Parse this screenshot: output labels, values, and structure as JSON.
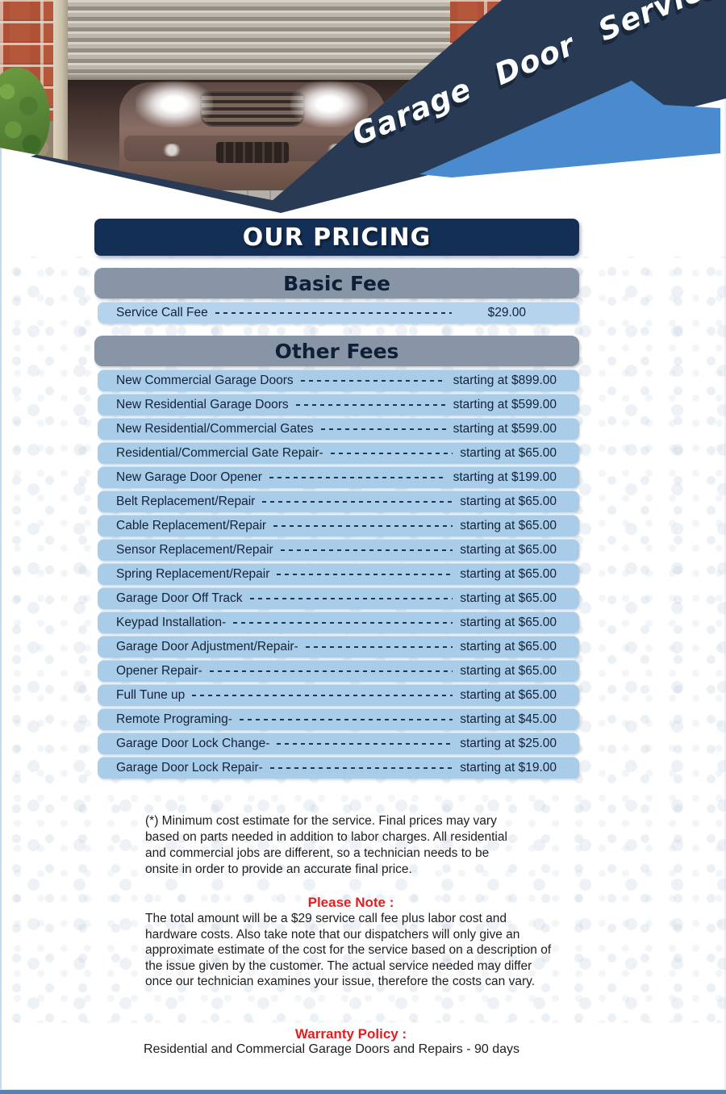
{
  "hero": {
    "banner_text": "Garage Door Service"
  },
  "pricing": {
    "title": "OUR PRICING"
  },
  "basic_fee": {
    "heading": "Basic Fee",
    "row": {
      "label": "Service Call Fee",
      "price": "$29.00"
    }
  },
  "other_fees": {
    "heading": "Other Fees",
    "rows": [
      {
        "label": "New Commercial Garage Doors",
        "price": "starting at $899.00"
      },
      {
        "label": "New Residential Garage Doors",
        "price": "starting at $599.00"
      },
      {
        "label": "New Residential/Commercial Gates",
        "price": "starting at $599.00"
      },
      {
        "label": "Residential/Commercial Gate Repair-",
        "price": "starting at $65.00"
      },
      {
        "label": "New Garage Door Opener",
        "price": "starting at $199.00"
      },
      {
        "label": "Belt Replacement/Repair",
        "price": "starting at $65.00"
      },
      {
        "label": "Cable Replacement/Repair",
        "price": "starting at $65.00"
      },
      {
        "label": "Sensor Replacement/Repair",
        "price": "starting at $65.00"
      },
      {
        "label": "Spring Replacement/Repair",
        "price": "starting at $65.00"
      },
      {
        "label": "Garage Door Off Track",
        "price": "starting at $65.00"
      },
      {
        "label": "Keypad Installation-",
        "price": "starting at $65.00"
      },
      {
        "label": "Garage Door Adjustment/Repair-",
        "price": "starting at $65.00"
      },
      {
        "label": "Opener Repair-",
        "price": "starting at $65.00"
      },
      {
        "label": "Full Tune up",
        "price": "starting at $65.00"
      },
      {
        "label": "Remote Programing-",
        "price": "starting at $45.00"
      },
      {
        "label": "Garage Door Lock Change-",
        "price": "starting at $25.00"
      },
      {
        "label": "Garage Door Lock Repair-",
        "price": "starting at $19.00"
      }
    ]
  },
  "notes": {
    "disclaimer": "(*) Minimum cost estimate for the service. Final prices may vary based on parts needed in addition to labor charges. All residential and commercial jobs are different, so a technician needs to be onsite in order to provide an accurate final price.",
    "please_note_heading": "Please Note :",
    "please_note_body": "The total amount will be a $29 service call fee plus labor cost and hardware costs. Also take note that our dispatchers will only give an approximate estimate of the cost for the service based on a description of the issue given by the customer. The actual service needed may differ once our technician examines your issue, therefore the costs can vary.",
    "warranty_heading": "Warranty Policy :",
    "warranty_body": "Residential and Commercial Garage Doors and Repairs - 90 days"
  },
  "colors": {
    "navy": "#142f55",
    "band_navy": "#293b54",
    "banner_blue": "#4a8bd0",
    "bar_gray": "#8795a7",
    "row_blue": "#a9cce8",
    "basic_row_blue": "#b6d3ed",
    "heading_red": "#e41e1f",
    "bottom_bar_blue": "#4d84ba"
  }
}
